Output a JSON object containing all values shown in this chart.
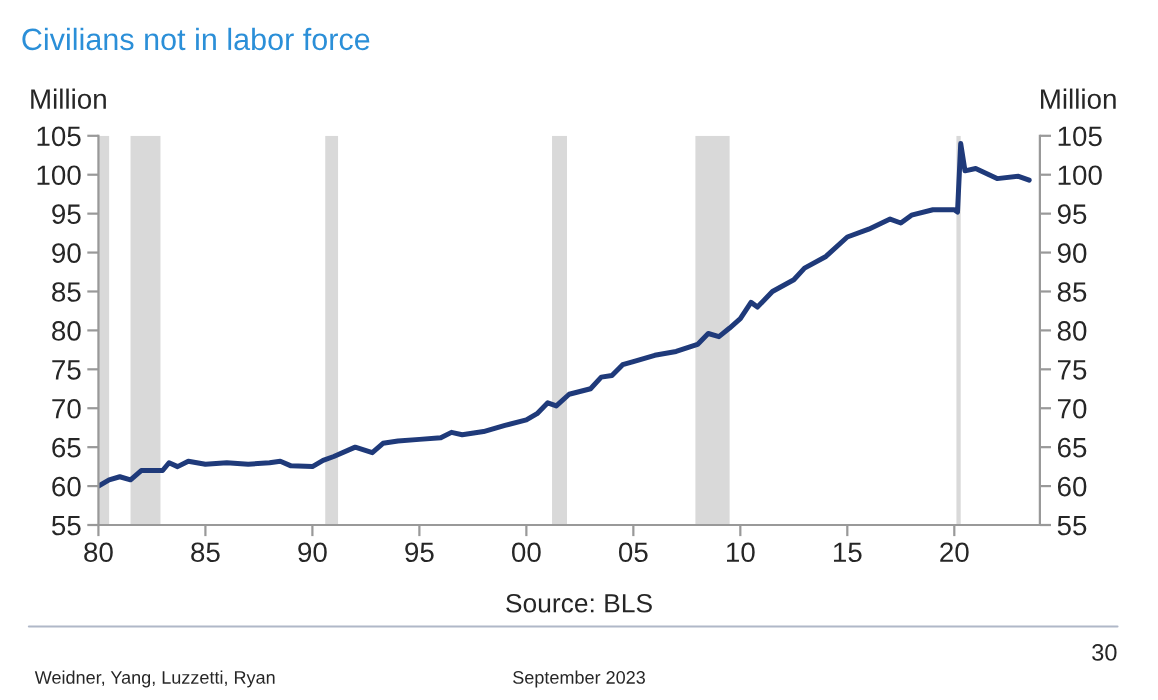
{
  "chart_data": {
    "type": "line",
    "title": "Civilians not in labor force",
    "ylabel": "Million",
    "y2label": "Million",
    "x": [
      1980.0,
      1980.5,
      1981.0,
      1981.5,
      1982.0,
      1982.5,
      1983.0,
      1983.3,
      1983.7,
      1984.2,
      1985.0,
      1986.0,
      1987.0,
      1988.0,
      1988.5,
      1989.0,
      1990.0,
      1990.5,
      1991.0,
      1992.0,
      1992.8,
      1993.3,
      1994.0,
      1995.0,
      1996.0,
      1996.5,
      1997.0,
      1998.0,
      1999.0,
      2000.0,
      2000.5,
      2001.0,
      2001.4,
      2002.0,
      2003.0,
      2003.5,
      2004.0,
      2004.5,
      2005.0,
      2006.0,
      2007.0,
      2008.0,
      2008.5,
      2009.0,
      2009.5,
      2010.0,
      2010.5,
      2010.8,
      2011.5,
      2012.5,
      2013.0,
      2014.0,
      2015.0,
      2016.0,
      2017.0,
      2017.5,
      2018.0,
      2019.0,
      2020.0,
      2020.15,
      2020.3,
      2020.5,
      2021.0,
      2022.0,
      2023.0,
      2023.5
    ],
    "series": [
      {
        "color": "#1f3a7a",
        "values": [
          60.0,
          60.8,
          61.2,
          60.8,
          62.0,
          62.0,
          62.0,
          63.0,
          62.5,
          63.2,
          62.8,
          63.0,
          62.8,
          63.0,
          63.2,
          62.6,
          62.5,
          63.3,
          63.8,
          65.0,
          64.3,
          65.5,
          65.8,
          66.0,
          66.2,
          66.9,
          66.6,
          67.0,
          67.8,
          68.5,
          69.3,
          70.7,
          70.3,
          71.8,
          72.5,
          74.0,
          74.2,
          75.6,
          76.0,
          76.8,
          77.3,
          78.2,
          79.6,
          79.2,
          80.3,
          81.5,
          83.6,
          83.0,
          85.0,
          86.5,
          88.0,
          89.5,
          92.0,
          93.0,
          94.3,
          93.8,
          94.8,
          95.5,
          95.5,
          95.2,
          104.0,
          100.5,
          100.8,
          99.5,
          99.8,
          99.3
        ]
      }
    ],
    "xlim": [
      1980,
      2024
    ],
    "xticks": [
      {
        "value": 1980,
        "label": "80"
      },
      {
        "value": 1985,
        "label": "85"
      },
      {
        "value": 1990,
        "label": "90"
      },
      {
        "value": 1995,
        "label": "95"
      },
      {
        "value": 2000,
        "label": "00"
      },
      {
        "value": 2005,
        "label": "05"
      },
      {
        "value": 2010,
        "label": "10"
      },
      {
        "value": 2015,
        "label": "15"
      },
      {
        "value": 2020,
        "label": "20"
      }
    ],
    "ylim": [
      55,
      105
    ],
    "yticks": [
      55,
      60,
      65,
      70,
      75,
      80,
      85,
      90,
      95,
      100,
      105
    ],
    "y2lim": [
      55,
      105
    ],
    "y2ticks": [
      55,
      60,
      65,
      70,
      75,
      80,
      85,
      90,
      95,
      100,
      105
    ],
    "bands": [
      {
        "axis": "x",
        "from": 1980.0,
        "to": 1980.5,
        "color": "#d9d9d9"
      },
      {
        "axis": "x",
        "from": 1981.5,
        "to": 1982.9,
        "color": "#d9d9d9"
      },
      {
        "axis": "x",
        "from": 1990.6,
        "to": 1991.2,
        "color": "#d9d9d9"
      },
      {
        "axis": "x",
        "from": 2001.2,
        "to": 2001.9,
        "color": "#d9d9d9"
      },
      {
        "axis": "x",
        "from": 2007.9,
        "to": 2009.5,
        "color": "#d9d9d9"
      },
      {
        "axis": "x",
        "from": 2020.1,
        "to": 2020.3,
        "color": "#d9d9d9"
      }
    ],
    "grid": false,
    "annotations": [
      "Source: BLS",
      "Weidner, Yang, Luzzetti, Ryan",
      "September 2023",
      "30"
    ]
  }
}
